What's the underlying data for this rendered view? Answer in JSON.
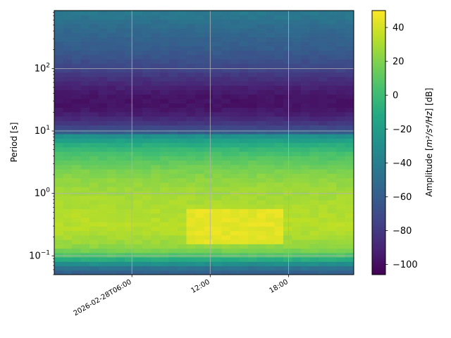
{
  "chart_data": {
    "type": "heatmap",
    "title": "",
    "ylabel": "Period [s]",
    "y_scale": "log",
    "ylim": [
      0.05,
      850
    ],
    "y_ticks": [
      {
        "value": 0.1,
        "base": "10",
        "exp": "−1"
      },
      {
        "value": 1,
        "base": "10",
        "exp": "0"
      },
      {
        "value": 10,
        "base": "10",
        "exp": "1"
      },
      {
        "value": 100,
        "base": "10",
        "exp": "2"
      }
    ],
    "x_ticks": [
      "2026-02-28T06:00",
      "12:00",
      "18:00"
    ],
    "x_tick_hours": [
      6,
      12,
      18
    ],
    "xlim_hours": [
      0.05,
      23.0
    ],
    "grid": true,
    "colormap": "viridis",
    "colorbar": {
      "label_prefix": "Amplitude [",
      "label_math": "m²/s⁴/Hz",
      "label_suffix": "] [dB]",
      "vmin": -106,
      "vmax": 50,
      "ticks": [
        "40",
        "20",
        "0",
        "−20",
        "−40",
        "−60",
        "−80",
        "−100"
      ],
      "tick_values": [
        40,
        20,
        0,
        -20,
        -40,
        -60,
        -80,
        -100
      ]
    },
    "spectrum_profile": {
      "period_s": [
        0.05,
        0.06,
        0.07,
        0.08,
        0.1,
        0.13,
        0.18,
        0.25,
        0.35,
        0.5,
        0.7,
        1.0,
        1.5,
        2.2,
        3.0,
        4.5,
        6.5,
        8.5,
        10,
        13,
        18,
        25,
        35,
        50,
        70,
        100,
        150,
        220,
        320,
        450,
        600,
        850
      ],
      "amplitude_db": [
        -62,
        -52,
        -40,
        -20,
        5,
        22,
        28,
        32,
        33,
        32,
        30,
        28,
        25,
        20,
        13,
        3,
        -12,
        -30,
        -66,
        -80,
        -92,
        -98,
        -98,
        -92,
        -84,
        -74,
        -66,
        -60,
        -56,
        -52,
        -47,
        -42
      ]
    },
    "energetic_window_hours": [
      10.5,
      17.5
    ],
    "energetic_window_period_s": [
      0.15,
      0.6
    ],
    "energetic_window_peak_db": 48
  }
}
